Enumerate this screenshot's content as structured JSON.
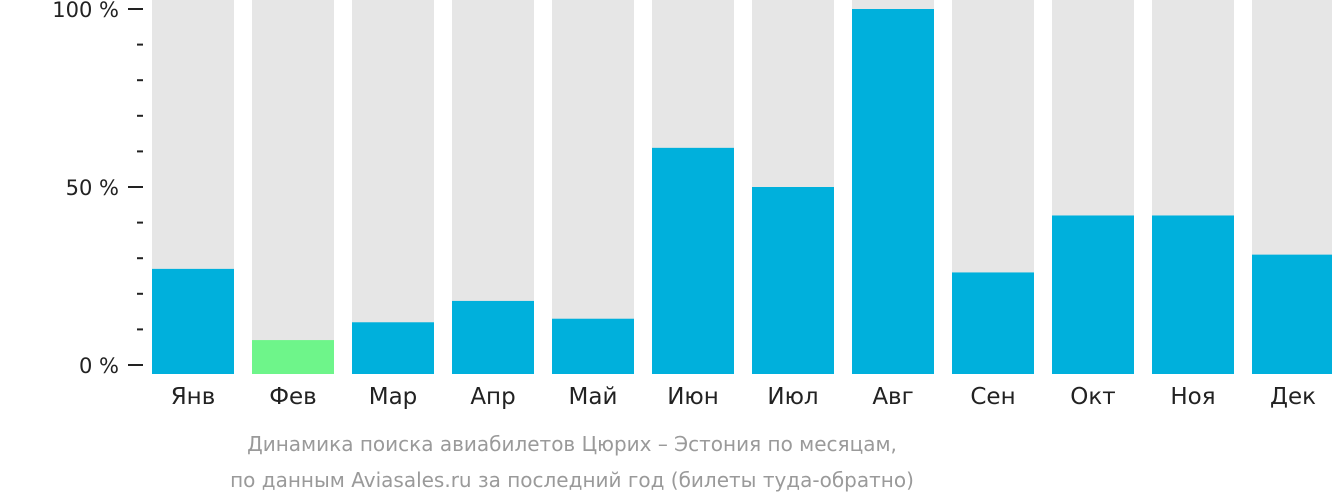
{
  "chart_data": {
    "type": "bar",
    "categories": [
      "Янв",
      "Фев",
      "Мар",
      "Апр",
      "Май",
      "Июн",
      "Июл",
      "Авг",
      "Сен",
      "Окт",
      "Ноя",
      "Дек"
    ],
    "values": [
      27,
      7,
      12,
      18,
      13,
      61,
      50,
      100,
      26,
      42,
      42,
      31
    ],
    "ylim": [
      0,
      100
    ],
    "yticks": [
      {
        "value": 0,
        "label": "0 %"
      },
      {
        "value": 50,
        "label": "50 %"
      },
      {
        "value": 100,
        "label": "100 %"
      }
    ],
    "minor_tick_step": 10,
    "title": "Динамика поиска авиабилетов Цюрих – Эстония по месяцам,",
    "subtitle": "по данным Aviasales.ru за последний год (билеты туда-обратно)",
    "highlight_index": 1,
    "colors": {
      "bar": "#00b0dc",
      "highlight": "#6ef58a",
      "track": "#e6e6e6",
      "axis": "#222222"
    }
  }
}
